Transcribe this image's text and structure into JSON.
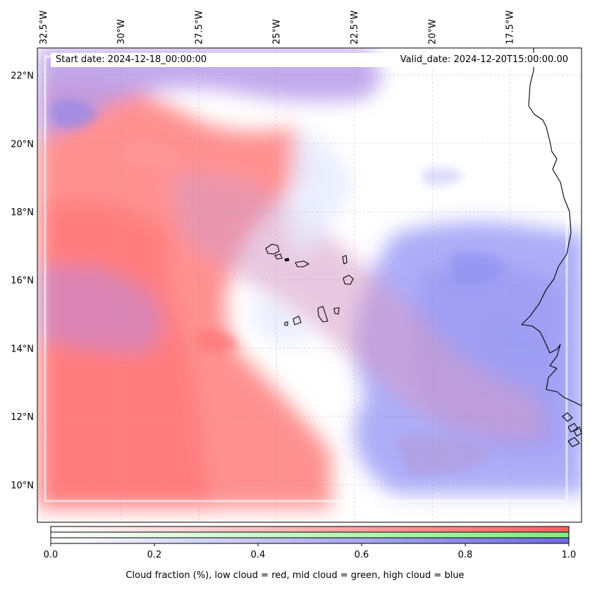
{
  "map": {
    "start_date": "Start date: 2024-12-18_00:00:00",
    "valid_date": "Valid_date: 2024-12-20T15:00:00.00",
    "extent": {
      "lon_min": -32.7,
      "lon_max": -15.2,
      "lat_min": 8.9,
      "lat_max": 22.8
    },
    "lon_ticks": [
      {
        "value": -32.5,
        "label": "32.5°W"
      },
      {
        "value": -30,
        "label": "30°W"
      },
      {
        "value": -27.5,
        "label": "27.5°W"
      },
      {
        "value": -25,
        "label": "25°W"
      },
      {
        "value": -22.5,
        "label": "22.5°W"
      },
      {
        "value": -20,
        "label": "20°W"
      },
      {
        "value": -17.5,
        "label": "17.5°W"
      }
    ],
    "lat_ticks": [
      {
        "value": 22,
        "label": "22°N"
      },
      {
        "value": 20,
        "label": "20°N"
      },
      {
        "value": 18,
        "label": "18°N"
      },
      {
        "value": 16,
        "label": "16°N"
      },
      {
        "value": 14,
        "label": "14°N"
      },
      {
        "value": 12,
        "label": "12°N"
      },
      {
        "value": 10,
        "label": "10°N"
      }
    ],
    "colors": {
      "low_cloud": "#ff6e6e",
      "mid_cloud": "#84e884",
      "high_cloud": "#7a78e6",
      "coastline": "#000000"
    }
  },
  "colorbar": {
    "ticks": [
      "0.0",
      "0.2",
      "0.4",
      "0.6",
      "0.8",
      "1.0"
    ],
    "label": "Cloud fraction (%), low cloud = red, mid cloud = green, high cloud = blue"
  }
}
